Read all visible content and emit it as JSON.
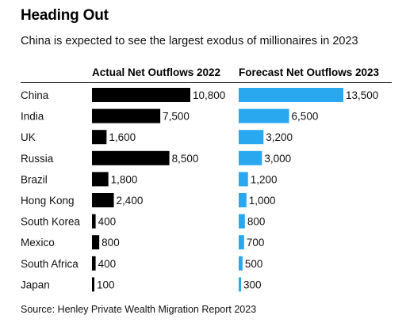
{
  "title": "Heading Out",
  "subtitle": "China is expected to see the largest exodus of millionaires in 2023",
  "source": "Source: Henley Private Wealth Migration Report 2023",
  "colors": {
    "actual": "#000000",
    "forecast": "#29a8f0"
  },
  "chart_data": {
    "type": "bar",
    "orientation": "horizontal",
    "categories": [
      "China",
      "India",
      "UK",
      "Russia",
      "Brazil",
      "Hong Kong",
      "South Korea",
      "Mexico",
      "South Africa",
      "Japan"
    ],
    "series": [
      {
        "name": "Actual Net Outflows 2022",
        "values": [
          10800,
          7500,
          1600,
          8500,
          1800,
          2400,
          400,
          800,
          400,
          100
        ],
        "labels": [
          "10,800",
          "7,500",
          "1,600",
          "8,500",
          "1,800",
          "2,400",
          "400",
          "800",
          "400",
          "100"
        ]
      },
      {
        "name": "Forecast Net Outflows 2023",
        "values": [
          13500,
          6500,
          3200,
          3000,
          1200,
          1000,
          800,
          700,
          500,
          300
        ],
        "labels": [
          "13,500",
          "6,500",
          "3,200",
          "3,000",
          "1,200",
          "1,000",
          "800",
          "700",
          "500",
          "300"
        ]
      }
    ]
  }
}
